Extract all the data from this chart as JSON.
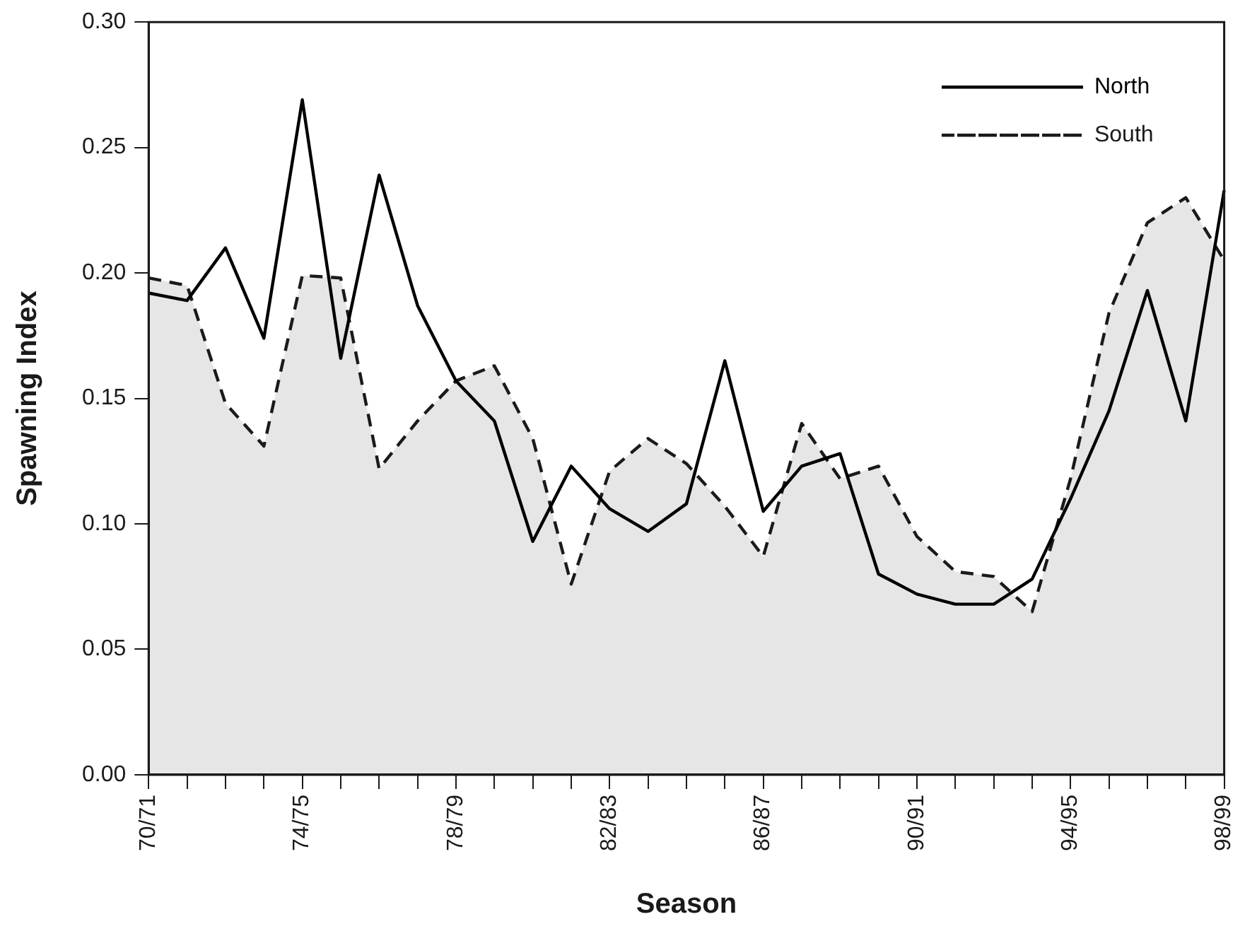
{
  "chart_data": {
    "type": "line",
    "xlabel": "Season",
    "ylabel": "Spawning Index",
    "categories": [
      "70/71",
      null,
      null,
      null,
      "74/75",
      null,
      null,
      null,
      "78/79",
      null,
      null,
      null,
      "82/83",
      null,
      null,
      null,
      "86/87",
      null,
      null,
      null,
      "90/91",
      null,
      null,
      null,
      "94/95",
      null,
      null,
      null,
      "98/99"
    ],
    "series": [
      {
        "name": "North",
        "type": "line",
        "color": "#000000",
        "line_style": "solid",
        "values": [
          0.192,
          0.189,
          0.21,
          0.174,
          0.269,
          0.166,
          0.239,
          0.187,
          0.157,
          0.141,
          0.093,
          0.123,
          0.106,
          0.097,
          0.108,
          0.165,
          0.105,
          0.123,
          0.128,
          0.08,
          0.072,
          0.068,
          0.068,
          0.078,
          0.11,
          0.145,
          0.193,
          0.141,
          0.233
        ]
      },
      {
        "name": "South",
        "type": "area",
        "color": "#1a1a1a",
        "line_style": "dashed",
        "values": [
          0.198,
          0.195,
          0.148,
          0.131,
          0.199,
          0.198,
          0.122,
          0.141,
          0.157,
          0.163,
          0.134,
          0.076,
          0.121,
          0.134,
          0.124,
          0.107,
          0.087,
          0.14,
          0.118,
          0.123,
          0.095,
          0.081,
          0.079,
          0.065,
          0.118,
          0.184,
          0.22,
          0.23,
          0.205
        ]
      }
    ],
    "ylim": [
      0,
      0.3
    ],
    "yticks": [
      {
        "value": 0,
        "label": "0.00"
      },
      {
        "value": 0.05,
        "label": "0.05"
      },
      {
        "value": 0.1,
        "label": "0.10"
      },
      {
        "value": 0.15,
        "label": "0.15"
      },
      {
        "value": 0.2,
        "label": "0.20"
      },
      {
        "value": 0.25,
        "label": "0.25"
      },
      {
        "value": 0.3,
        "label": "0.30"
      }
    ],
    "grid": false,
    "legend": "top right",
    "marker": "none"
  }
}
